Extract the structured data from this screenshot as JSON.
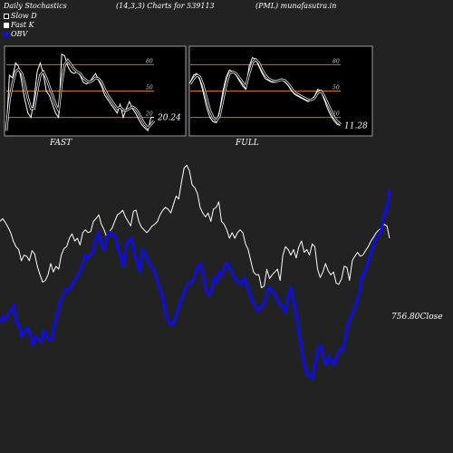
{
  "header": {
    "title": "Daily Stochastics",
    "params": "(14,3,3) Charts for 539113",
    "source": "(PML) munafasutra.in"
  },
  "legend": [
    {
      "label": "Slow  D",
      "color": "#000000"
    },
    {
      "label": "Fast K",
      "color": "#ffffff"
    },
    {
      "label": "OBV",
      "color": "#1010cc"
    }
  ],
  "colors": {
    "background": "#222222",
    "panel": "#000000",
    "level_line": "#c87800",
    "obv": "#1010cc",
    "close": "#ffffff",
    "slow_d": "#000000",
    "fast_k": "#ffffff"
  },
  "chart_data": [
    {
      "type": "line",
      "name": "FAST",
      "caption": "FAST",
      "ylim": [
        0,
        100
      ],
      "yticks": [
        80,
        50,
        20
      ],
      "levels": [
        80,
        50,
        20
      ],
      "last_value_label": "20.24",
      "series": [
        {
          "name": "Fast K",
          "values": [
            5,
            68,
            65,
            82,
            78,
            60,
            40,
            25,
            20,
            40,
            72,
            82,
            70,
            50,
            45,
            35,
            25,
            20,
            92,
            90,
            78,
            72,
            70,
            72,
            68,
            60,
            58,
            60,
            65,
            70,
            62,
            55,
            45,
            40,
            35,
            30,
            25,
            35,
            20,
            30,
            38,
            30,
            25,
            18,
            12,
            8,
            5,
            20,
            20
          ]
        },
        {
          "name": "Slow  D",
          "values": [
            5,
            40,
            58,
            72,
            75,
            70,
            58,
            42,
            30,
            30,
            50,
            68,
            72,
            65,
            55,
            45,
            35,
            28,
            60,
            80,
            85,
            80,
            75,
            72,
            70,
            65,
            62,
            60,
            62,
            65,
            64,
            60,
            52,
            45,
            40,
            35,
            30,
            32,
            28,
            28,
            30,
            32,
            30,
            25,
            18,
            12,
            8,
            12,
            16
          ]
        }
      ]
    },
    {
      "type": "line",
      "name": "FULL",
      "caption": "FULL",
      "ylim": [
        0,
        100
      ],
      "yticks": [
        80,
        50,
        20
      ],
      "levels": [
        80,
        50,
        20
      ],
      "last_value_label": "11.28",
      "series": [
        {
          "name": "Fast K",
          "values": [
            60,
            68,
            70,
            62,
            48,
            32,
            20,
            15,
            14,
            28,
            50,
            66,
            74,
            72,
            68,
            62,
            56,
            52,
            78,
            88,
            86,
            78,
            70,
            64,
            62,
            60,
            60,
            62,
            64,
            60,
            56,
            50,
            46,
            44,
            42,
            40,
            38,
            40,
            44,
            52,
            50,
            40,
            30,
            22,
            16,
            12,
            11
          ]
        },
        {
          "name": "Slow  D",
          "values": [
            58,
            64,
            68,
            66,
            56,
            42,
            28,
            20,
            16,
            22,
            40,
            58,
            70,
            72,
            70,
            65,
            60,
            55,
            70,
            82,
            86,
            82,
            74,
            68,
            64,
            62,
            61,
            62,
            63,
            62,
            58,
            53,
            48,
            46,
            44,
            42,
            40,
            40,
            42,
            48,
            50,
            44,
            36,
            28,
            20,
            15,
            12
          ]
        }
      ]
    },
    {
      "type": "line",
      "name": "OBV / Close",
      "close_label": "756.80Close",
      "series": [
        {
          "name": "Close",
          "values": [
            380,
            385,
            378,
            370,
            360,
            345,
            335,
            330,
            310,
            320,
            318,
            310,
            328,
            322,
            300,
            285,
            272,
            275,
            285,
            305,
            290,
            300,
            295,
            320,
            332,
            335,
            350,
            358,
            345,
            350,
            338,
            360,
            365,
            360,
            362,
            380,
            385,
            392,
            375,
            365,
            352,
            362,
            368,
            380,
            392,
            395,
            400,
            388,
            380,
            372,
            398,
            400,
            380,
            370,
            365,
            360,
            365,
            372,
            375,
            380,
            392,
            400,
            405,
            402,
            395,
            410,
            425,
            420,
            450,
            475,
            480,
            470,
            445,
            440,
            430,
            405,
            395,
            388,
            395,
            380,
            402,
            405,
            415,
            380,
            375,
            365,
            350,
            360,
            350,
            360,
            365,
            360,
            340,
            330,
            310,
            290,
            285,
            285,
            262,
            265,
            295,
            278,
            285,
            290,
            295,
            275,
            320,
            335,
            330,
            320,
            330,
            315,
            335,
            345,
            325,
            330,
            320,
            340,
            335,
            295,
            280,
            290,
            305,
            292,
            285,
            290,
            270,
            268,
            278,
            300,
            298,
            275,
            310,
            318,
            325,
            318,
            320,
            328,
            335,
            345,
            352,
            360,
            365,
            368,
            375,
            372,
            350
          ]
        },
        {
          "name": "OBV",
          "values": [
            200,
            210,
            205,
            215,
            220,
            230,
            200,
            195,
            175,
            185,
            190,
            180,
            160,
            175,
            170,
            165,
            185,
            175,
            168,
            172,
            200,
            215,
            240,
            245,
            260,
            258,
            262,
            275,
            280,
            290,
            300,
            320,
            315,
            320,
            328,
            350,
            360,
            340,
            330,
            352,
            360,
            355,
            355,
            330,
            318,
            300,
            340,
            345,
            350,
            322,
            308,
            290,
            330,
            320,
            310,
            300,
            295,
            280,
            262,
            250,
            225,
            205,
            198,
            195,
            210,
            225,
            240,
            252,
            265,
            272,
            270,
            285,
            295,
            305,
            285,
            260,
            248,
            255,
            280,
            272,
            290,
            285,
            300,
            305,
            295,
            285,
            275,
            272,
            268,
            280,
            265,
            252,
            238,
            230,
            220,
            228,
            230,
            245,
            262,
            258,
            252,
            240,
            232,
            228,
            218,
            245,
            262,
            240,
            215,
            178,
            150,
            125,
            105,
            108,
            100,
            130,
            155,
            158,
            132,
            125,
            140,
            130,
            125,
            142,
            152,
            150,
            175,
            200,
            210,
            220,
            238,
            255,
            282,
            290,
            305,
            320,
            335,
            350,
            355,
            362,
            395,
            400,
            435
          ]
        }
      ]
    }
  ]
}
